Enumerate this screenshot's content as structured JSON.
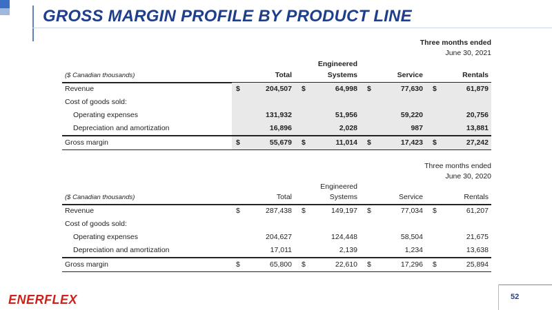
{
  "title": "GROSS MARGIN PROFILE BY PRODUCT LINE",
  "tables": [
    {
      "period_line1": "Three months ended",
      "period_line2": "June 30, 2021",
      "units": "($ Canadian thousands)",
      "columns": {
        "total": "Total",
        "eng1": "Engineered",
        "eng2": "Systems",
        "service": "Service",
        "rentals": "Rentals"
      },
      "rows": [
        {
          "label": "Revenue",
          "total": "204,507",
          "eng": "64,998",
          "service": "77,630",
          "rentals": "61,879",
          "c1": "$",
          "c2": "$",
          "c3": "$",
          "c4": "$"
        },
        {
          "label": "Cost of goods sold:"
        },
        {
          "label": "Operating expenses",
          "total": "131,932",
          "eng": "51,956",
          "service": "59,220",
          "rentals": "20,756"
        },
        {
          "label": "Depreciation and amortization",
          "total": "16,896",
          "eng": "2,028",
          "service": "987",
          "rentals": "13,881"
        },
        {
          "label": "Gross margin",
          "total": "55,679",
          "eng": "11,014",
          "service": "17,423",
          "rentals": "27,242",
          "c1": "$",
          "c2": "$",
          "c3": "$",
          "c4": "$"
        }
      ]
    },
    {
      "period_line1": "Three months ended",
      "period_line2": "June 30, 2020",
      "units": "($ Canadian thousands)",
      "columns": {
        "total": "Total",
        "eng1": "Engineered",
        "eng2": "Systems",
        "service": "Service",
        "rentals": "Rentals"
      },
      "rows": [
        {
          "label": "Revenue",
          "total": "287,438",
          "eng": "149,197",
          "service": "77,034",
          "rentals": "61,207",
          "c1": "$",
          "c2": "$",
          "c3": "$",
          "c4": "$"
        },
        {
          "label": "Cost of goods sold:"
        },
        {
          "label": "Operating expenses",
          "total": "204,627",
          "eng": "124,448",
          "service": "58,504",
          "rentals": "21,675"
        },
        {
          "label": "Depreciation and amortization",
          "total": "17,011",
          "eng": "2,139",
          "service": "1,234",
          "rentals": "13,638"
        },
        {
          "label": "Gross margin",
          "total": "65,800",
          "eng": "22,610",
          "service": "17,296",
          "rentals": "25,894",
          "c1": "$",
          "c2": "$",
          "c3": "$",
          "c4": "$"
        }
      ]
    }
  ],
  "footer": {
    "logo": "ENERFLEX",
    "page": "52"
  },
  "colors": {
    "title": "#1f3f8a",
    "logo": "#c8231c",
    "shade": "#e9e9e9"
  }
}
